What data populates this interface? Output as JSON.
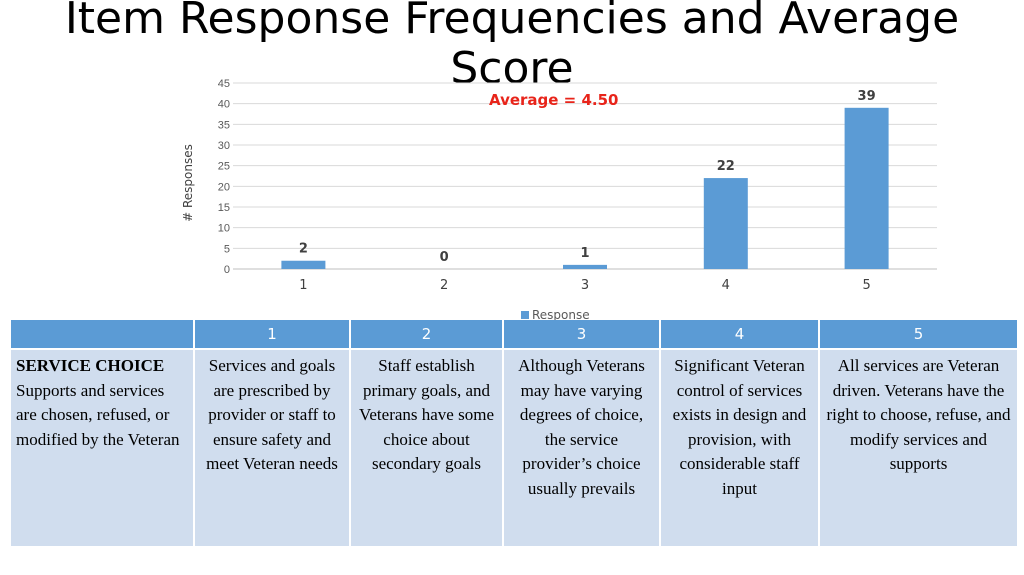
{
  "title": "Item Response Frequencies and Average Score",
  "chart_data": {
    "type": "bar",
    "categories": [
      "1",
      "2",
      "3",
      "4",
      "5"
    ],
    "series": [
      {
        "name": "Response",
        "values": [
          2,
          0,
          1,
          22,
          39
        ]
      }
    ],
    "data_labels": [
      "2",
      "0",
      "1",
      "22",
      "39"
    ],
    "yticks": [
      "0",
      "5",
      "10",
      "15",
      "20",
      "25",
      "30",
      "35",
      "40",
      "45"
    ],
    "ylim": [
      0,
      45
    ],
    "ylabel": "# Responses",
    "xlabel": "",
    "annotation": "Average = 4.50",
    "grid": true,
    "legend_position": "bottom",
    "color": "#5b9bd5"
  },
  "table": {
    "headers": [
      "",
      "1",
      "2",
      "3",
      "4",
      "5"
    ],
    "row_heading": "SERVICE CHOICE",
    "row_heading_text": "Supports and services are chosen, refused, or modified by the Veteran",
    "cells": [
      "Services and goals are prescribed by provider or staff to ensure safety and meet Veteran needs",
      "Staff establish primary goals, and Veterans have some choice about secondary goals",
      "Although Veterans may have varying degrees of choice, the service provider’s choice usually prevails",
      "Significant Veteran control of services exists in design and provision, with considerable staff input",
      "All services are Veteran driven. Veterans have the right to choose, refuse, and modify services and supports"
    ]
  }
}
